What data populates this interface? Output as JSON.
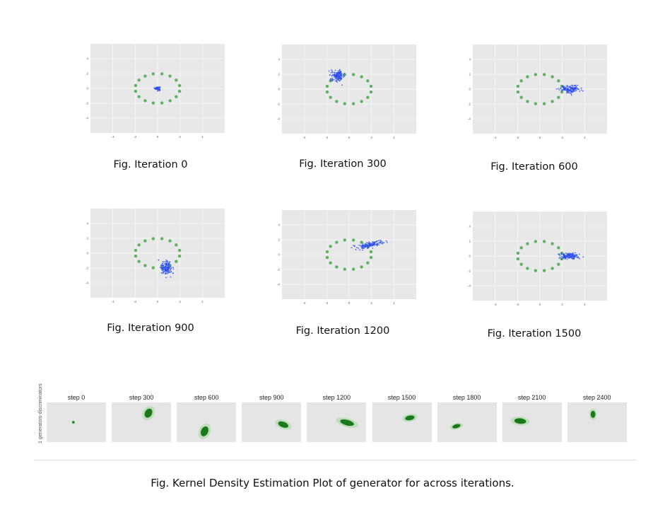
{
  "chart_data": [
    {
      "type": "scatter",
      "caption": "Fig. Iteration 0",
      "xlim": [
        -6,
        6
      ],
      "ylim": [
        -6,
        6
      ],
      "xticks": [
        "-4",
        "-2",
        "0",
        "2",
        "4"
      ],
      "yticks": [
        "4",
        "2",
        "0",
        "-2",
        "-4"
      ],
      "real_points": {
        "shape": "ring",
        "count": 16,
        "radius_x": 2.0,
        "radius_y": 2.0,
        "color": "#5fb060"
      },
      "generated_points": {
        "center": [
          0.0,
          0.0
        ],
        "spread": [
          0.12,
          0.12
        ],
        "count": 60,
        "color": "#2b4df0"
      }
    },
    {
      "type": "scatter",
      "caption": "Fig. Iteration 300",
      "xlim": [
        -6,
        6
      ],
      "ylim": [
        -6,
        6
      ],
      "xticks": [
        "-4",
        "-2",
        "0",
        "2",
        "4"
      ],
      "yticks": [
        "4",
        "2",
        "0",
        "-2",
        "-4"
      ],
      "real_points": {
        "shape": "ring",
        "count": 16,
        "radius_x": 2.0,
        "radius_y": 2.0,
        "color": "#5fb060"
      },
      "generated_points": {
        "center": [
          -1.0,
          1.8
        ],
        "spread": [
          0.3,
          0.35
        ],
        "count": 150,
        "color": "#2b4df0"
      }
    },
    {
      "type": "scatter",
      "caption": "Fig. Iteration 600",
      "xlim": [
        -6,
        6
      ],
      "ylim": [
        -6,
        6
      ],
      "xticks": [
        "-4",
        "-2",
        "0",
        "2",
        "4"
      ],
      "yticks": [
        "4",
        "2",
        "0",
        "-2",
        "-4"
      ],
      "real_points": {
        "shape": "ring",
        "count": 16,
        "radius_x": 2.0,
        "radius_y": 2.0,
        "color": "#5fb060"
      },
      "generated_points": {
        "center": [
          2.7,
          0.0
        ],
        "spread": [
          0.45,
          0.25
        ],
        "count": 150,
        "color": "#2b4df0"
      }
    },
    {
      "type": "scatter",
      "caption": "Fig. Iteration 900",
      "xlim": [
        -6,
        6
      ],
      "ylim": [
        -6,
        6
      ],
      "xticks": [
        "-4",
        "-2",
        "0",
        "2",
        "4"
      ],
      "yticks": [
        "4",
        "2",
        "0",
        "-2",
        "-4"
      ],
      "real_points": {
        "shape": "ring",
        "count": 16,
        "radius_x": 2.0,
        "radius_y": 2.0,
        "color": "#5fb060"
      },
      "generated_points": {
        "center": [
          0.8,
          -2.0
        ],
        "spread": [
          0.25,
          0.5
        ],
        "count": 150,
        "color": "#2b4df0"
      }
    },
    {
      "type": "scatter",
      "caption": "Fig. Iteration 1200",
      "xlim": [
        -6,
        6
      ],
      "ylim": [
        -6,
        6
      ],
      "xticks": [
        "-4",
        "-2",
        "0",
        "2",
        "4"
      ],
      "yticks": [
        "4",
        "2",
        "0",
        "-2",
        "-4"
      ],
      "real_points": {
        "shape": "ring",
        "count": 16,
        "radius_x": 2.0,
        "radius_y": 2.0,
        "color": "#5fb060"
      },
      "generated_points": {
        "center": [
          1.8,
          1.3
        ],
        "spread": [
          0.6,
          0.18
        ],
        "angle": 20,
        "count": 150,
        "color": "#2b4df0"
      }
    },
    {
      "type": "scatter",
      "caption": "Fig. Iteration 1500",
      "xlim": [
        -6,
        6
      ],
      "ylim": [
        -6,
        6
      ],
      "xticks": [
        "-4",
        "-2",
        "0",
        "2",
        "4"
      ],
      "yticks": [
        "4",
        "2",
        "0",
        "-2",
        "-4"
      ],
      "real_points": {
        "shape": "ring",
        "count": 16,
        "radius_x": 2.0,
        "radius_y": 2.0,
        "color": "#5fb060"
      },
      "generated_points": {
        "center": [
          2.6,
          0.0
        ],
        "spread": [
          0.4,
          0.22
        ],
        "count": 150,
        "color": "#2b4df0"
      }
    },
    {
      "type": "heatmap",
      "subtype": "kde",
      "ylabel": "1 generators-discriminators",
      "steps": [
        {
          "title": "step 0",
          "blob": {
            "x": 0.45,
            "y": 0.5,
            "rx": 0.02,
            "ry": 0.03,
            "angle": 0
          }
        },
        {
          "title": "step 300",
          "blob": {
            "x": 0.62,
            "y": 0.27,
            "rx": 0.06,
            "ry": 0.12,
            "angle": 30
          }
        },
        {
          "title": "step 600",
          "blob": {
            "x": 0.47,
            "y": 0.73,
            "rx": 0.06,
            "ry": 0.13,
            "angle": 25
          }
        },
        {
          "title": "step 900",
          "blob": {
            "x": 0.7,
            "y": 0.56,
            "rx": 0.09,
            "ry": 0.07,
            "angle": 20
          }
        },
        {
          "title": "step 1200",
          "blob": {
            "x": 0.68,
            "y": 0.51,
            "rx": 0.12,
            "ry": 0.07,
            "angle": 15
          }
        },
        {
          "title": "step 1500",
          "blob": {
            "x": 0.63,
            "y": 0.39,
            "rx": 0.08,
            "ry": 0.06,
            "angle": -10
          }
        },
        {
          "title": "step 1800",
          "blob": {
            "x": 0.32,
            "y": 0.6,
            "rx": 0.07,
            "ry": 0.05,
            "angle": -15
          }
        },
        {
          "title": "step 2100",
          "blob": {
            "x": 0.3,
            "y": 0.47,
            "rx": 0.1,
            "ry": 0.07,
            "angle": 5
          }
        },
        {
          "title": "step 2400",
          "blob": {
            "x": 0.43,
            "y": 0.3,
            "rx": 0.04,
            "ry": 0.09,
            "angle": 0
          }
        }
      ],
      "panel_color": "#e5e5e5",
      "blob_color": "#1a7a1a"
    }
  ],
  "final_caption": "Fig. Kernel Density Estimation Plot of generator for across iterations."
}
